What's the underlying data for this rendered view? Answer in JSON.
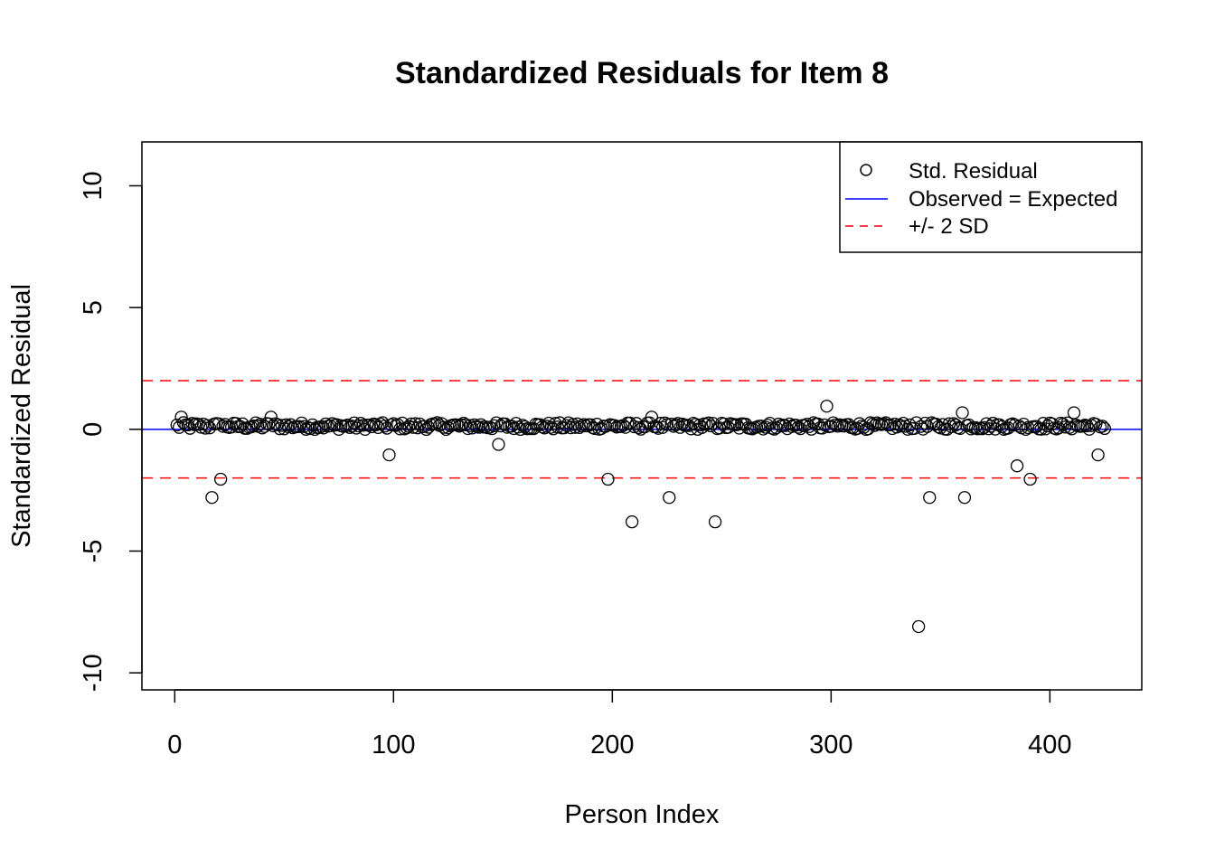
{
  "chart_data": {
    "type": "scatter",
    "title": "Standardized Residuals for Item 8",
    "xlabel": "Person Index",
    "ylabel": "Standardized Residual",
    "xlim": [
      -15,
      442
    ],
    "ylim": [
      -10.7,
      11.8
    ],
    "x_ticks": [
      0,
      100,
      200,
      300,
      400
    ],
    "x_tick_labels": [
      "0",
      "100",
      "200",
      "300",
      "400"
    ],
    "y_ticks": [
      -10,
      -5,
      0,
      5,
      10
    ],
    "y_tick_labels": [
      "-10",
      "-5",
      "0",
      "5",
      "10"
    ],
    "grid": false,
    "legend": {
      "position": "top-right",
      "entries": [
        {
          "label": "Std. Residual",
          "symbol": "open-circle",
          "color": "#000000"
        },
        {
          "label": "Observed = Expected",
          "symbol": "solid-line",
          "color": "#0000ff"
        },
        {
          "label": "+/- 2 SD",
          "symbol": "dashed-line",
          "color": "#ff0000"
        }
      ]
    },
    "reference_lines": [
      {
        "y": 0,
        "style": "solid",
        "color": "#0000ff"
      },
      {
        "y": 2,
        "style": "dashed",
        "color": "#ff0000"
      },
      {
        "y": -2,
        "style": "dashed",
        "color": "#ff0000"
      }
    ],
    "n_points": 425,
    "baseline_residual": 0.12,
    "outliers": [
      {
        "x": 3,
        "y": 0.5
      },
      {
        "x": 17,
        "y": -2.8
      },
      {
        "x": 21,
        "y": -2.05
      },
      {
        "x": 44,
        "y": 0.5
      },
      {
        "x": 98,
        "y": -1.05
      },
      {
        "x": 148,
        "y": -0.62
      },
      {
        "x": 198,
        "y": -2.05
      },
      {
        "x": 209,
        "y": -3.8
      },
      {
        "x": 218,
        "y": 0.5
      },
      {
        "x": 226,
        "y": -2.8
      },
      {
        "x": 247,
        "y": -3.8
      },
      {
        "x": 298,
        "y": 0.95
      },
      {
        "x": 340,
        "y": -8.1
      },
      {
        "x": 345,
        "y": -2.8
      },
      {
        "x": 360,
        "y": 0.68
      },
      {
        "x": 361,
        "y": -2.8
      },
      {
        "x": 385,
        "y": -1.5
      },
      {
        "x": 391,
        "y": -2.05
      },
      {
        "x": 411,
        "y": 0.68
      },
      {
        "x": 422,
        "y": -1.05
      }
    ]
  }
}
